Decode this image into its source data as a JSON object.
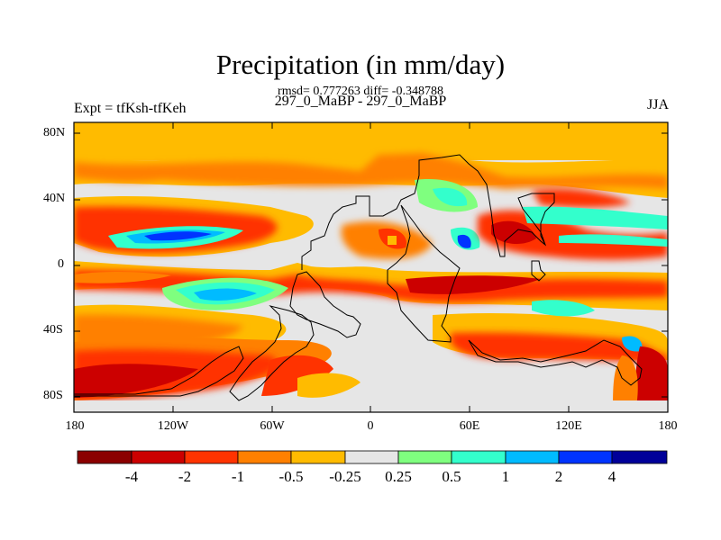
{
  "title": "Precipitation (in mm/day)",
  "stats": "rmsd= 0.777263 diff= -0.348788",
  "subtitle": "297_0_MaBP - 297_0_MaBP",
  "left_label": "Expt = tfKsh-tfKeh",
  "right_label": "JJA",
  "map": {
    "lat_ticks": [
      "80N",
      "40N",
      "0",
      "40S",
      "80S"
    ],
    "lon_ticks": [
      "180",
      "120W",
      "60W",
      "0",
      "60E",
      "120E",
      "180"
    ]
  },
  "colorbar": {
    "labels": [
      "-4",
      "-2",
      "-1",
      "-0.5",
      "-0.25",
      "0.25",
      "0.5",
      "1",
      "2",
      "4"
    ],
    "colors": [
      "#8b0000",
      "#cc0000",
      "#ff3300",
      "#ff8000",
      "#ffbb00",
      "#e6e6e6",
      "#7fff7f",
      "#33ffcc",
      "#00bbff",
      "#0033ff",
      "#000099"
    ]
  }
}
